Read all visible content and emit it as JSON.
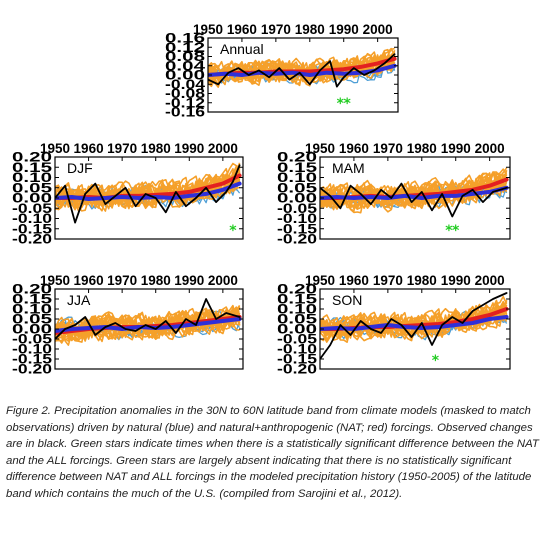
{
  "caption": "Figure 2. Precipitation anomalies in the 30N to 60N latitude band from climate models (masked to match observations) driven by natural (blue) and natural+anthropogenic (NAT; red) forcings. Observed changes are in black. Green stars indicate times when there is a statistically significant difference between the NAT and the ALL forcings. Green stars are largely absent indicating that there is no statistically significant difference between NAT and ALL forcings in the modeled precipitation history (1950-2005) of the latitude band which contains the much of the U.S. (compiled from Sarojini et al., 2012).",
  "colors": {
    "models": "#f5a02a",
    "natural": "#4f9fd6",
    "all_forcings": "#e83b1d",
    "all_mean": "#e32020",
    "nat_mean": "#2f2fd8",
    "observed": "#000000",
    "stars": "#22cc22"
  },
  "chart_data": [
    {
      "type": "line",
      "label": "Annual",
      "x_ticks": [
        "1950",
        "1960",
        "1970",
        "1980",
        "1990",
        "2000"
      ],
      "y_ticks": [
        "0.16",
        "0.12",
        "0.08",
        "0.04",
        "0.00",
        "-0.04",
        "-0.08",
        "-0.12",
        "-0.16"
      ],
      "xlim": [
        1950,
        2006
      ],
      "ylim": [
        -0.16,
        0.16
      ],
      "stars_x": [
        1989,
        1991
      ],
      "series": [
        {
          "role": "all_mean",
          "x": [
            1950,
            1955,
            1960,
            1965,
            1970,
            1975,
            1980,
            1985,
            1990,
            1995,
            2000,
            2005
          ],
          "values": [
            0.0,
            0.005,
            0.01,
            0.01,
            0.015,
            0.015,
            0.015,
            0.02,
            0.025,
            0.035,
            0.05,
            0.07
          ]
        },
        {
          "role": "nat_mean",
          "x": [
            1950,
            1955,
            1960,
            1965,
            1970,
            1975,
            1980,
            1985,
            1990,
            1995,
            2000,
            2005
          ],
          "values": [
            0.0,
            0.005,
            0.0,
            0.01,
            0.005,
            0.01,
            0.0,
            0.01,
            0.005,
            0.01,
            0.02,
            0.04
          ]
        },
        {
          "role": "observed",
          "x": [
            1950,
            1953,
            1956,
            1959,
            1962,
            1965,
            1968,
            1971,
            1974,
            1977,
            1980,
            1983,
            1986,
            1988,
            1990,
            1993,
            1996,
            1999,
            2002,
            2005
          ],
          "values": [
            -0.02,
            -0.04,
            0.01,
            0.03,
            0.0,
            0.02,
            -0.01,
            0.03,
            -0.02,
            0.01,
            -0.04,
            0.02,
            0.06,
            -0.05,
            -0.01,
            0.03,
            0.0,
            0.02,
            0.05,
            0.09
          ]
        }
      ]
    },
    {
      "type": "line",
      "label": "DJF",
      "x_ticks": [
        "1950",
        "1960",
        "1970",
        "1980",
        "1990",
        "2000"
      ],
      "y_ticks": [
        "0.20",
        "0.15",
        "0.10",
        "0.05",
        "0.00",
        "-0.05",
        "-0.10",
        "-0.15",
        "-0.20"
      ],
      "xlim": [
        1950,
        2006
      ],
      "ylim": [
        -0.2,
        0.2
      ],
      "stars_x": [
        2003
      ],
      "series": [
        {
          "role": "all_mean",
          "x": [
            1950,
            1955,
            1960,
            1965,
            1970,
            1975,
            1980,
            1985,
            1990,
            1995,
            2000,
            2005
          ],
          "values": [
            0.0,
            0.0,
            0.005,
            0.0,
            0.01,
            0.01,
            0.015,
            0.02,
            0.03,
            0.05,
            0.07,
            0.11
          ]
        },
        {
          "role": "nat_mean",
          "x": [
            1950,
            1955,
            1960,
            1965,
            1970,
            1975,
            1980,
            1985,
            1990,
            1995,
            2000,
            2005
          ],
          "values": [
            0.0,
            0.005,
            -0.005,
            0.0,
            0.005,
            0.0,
            0.005,
            0.0,
            0.01,
            0.02,
            0.04,
            0.07
          ]
        },
        {
          "role": "observed",
          "x": [
            1950,
            1953,
            1956,
            1959,
            1962,
            1965,
            1968,
            1971,
            1974,
            1977,
            1980,
            1983,
            1986,
            1989,
            1992,
            1995,
            1998,
            2001,
            2003,
            2005
          ],
          "values": [
            0.0,
            0.06,
            -0.12,
            0.02,
            0.07,
            -0.03,
            0.01,
            0.05,
            -0.04,
            0.02,
            0.0,
            -0.07,
            0.03,
            -0.04,
            0.0,
            0.05,
            -0.02,
            0.03,
            0.08,
            0.16
          ]
        }
      ]
    },
    {
      "type": "line",
      "label": "MAM",
      "x_ticks": [
        "1950",
        "1960",
        "1970",
        "1980",
        "1990",
        "2000"
      ],
      "y_ticks": [
        "0.20",
        "0.15",
        "0.10",
        "0.05",
        "0.00",
        "-0.05",
        "-0.10",
        "-0.15",
        "-0.20"
      ],
      "xlim": [
        1950,
        2006
      ],
      "ylim": [
        -0.2,
        0.2
      ],
      "stars_x": [
        1988,
        1990
      ],
      "series": [
        {
          "role": "all_mean",
          "x": [
            1950,
            1955,
            1960,
            1965,
            1970,
            1975,
            1980,
            1985,
            1990,
            1995,
            2000,
            2005
          ],
          "values": [
            0.0,
            0.0,
            0.005,
            0.01,
            0.005,
            0.01,
            0.015,
            0.02,
            0.03,
            0.04,
            0.06,
            0.09
          ]
        },
        {
          "role": "nat_mean",
          "x": [
            1950,
            1955,
            1960,
            1965,
            1970,
            1975,
            1980,
            1985,
            1990,
            1995,
            2000,
            2005
          ],
          "values": [
            0.0,
            0.005,
            0.0,
            0.005,
            0.0,
            0.01,
            0.0,
            0.01,
            0.01,
            0.02,
            0.03,
            0.05
          ]
        },
        {
          "role": "observed",
          "x": [
            1950,
            1953,
            1956,
            1959,
            1962,
            1965,
            1968,
            1971,
            1974,
            1977,
            1980,
            1983,
            1986,
            1989,
            1992,
            1995,
            1998,
            2001,
            2005
          ],
          "values": [
            0.05,
            0.01,
            -0.05,
            0.06,
            0.02,
            -0.03,
            0.04,
            0.0,
            0.07,
            -0.02,
            0.03,
            -0.06,
            0.02,
            -0.09,
            0.01,
            0.04,
            -0.02,
            0.03,
            0.05
          ]
        }
      ]
    },
    {
      "type": "line",
      "label": "JJA",
      "x_ticks": [
        "1950",
        "1960",
        "1970",
        "1980",
        "1990",
        "2000"
      ],
      "y_ticks": [
        "0.20",
        "0.15",
        "0.10",
        "0.05",
        "0.00",
        "-0.05",
        "-0.10",
        "-0.15",
        "-0.20"
      ],
      "xlim": [
        1950,
        2006
      ],
      "ylim": [
        -0.2,
        0.2
      ],
      "stars_x": [],
      "series": [
        {
          "role": "all_mean",
          "x": [
            1950,
            1955,
            1960,
            1965,
            1970,
            1975,
            1980,
            1985,
            1990,
            1995,
            2000,
            2005
          ],
          "values": [
            -0.02,
            -0.01,
            0.0,
            0.005,
            0.01,
            0.01,
            0.015,
            0.02,
            0.03,
            0.04,
            0.05,
            0.06
          ]
        },
        {
          "role": "nat_mean",
          "x": [
            1950,
            1955,
            1960,
            1965,
            1970,
            1975,
            1980,
            1985,
            1990,
            1995,
            2000,
            2005
          ],
          "values": [
            -0.01,
            0.0,
            0.005,
            0.01,
            0.0,
            0.01,
            0.005,
            0.01,
            0.02,
            0.03,
            0.04,
            0.05
          ]
        },
        {
          "role": "observed",
          "x": [
            1950,
            1953,
            1956,
            1959,
            1962,
            1965,
            1968,
            1971,
            1974,
            1977,
            1980,
            1983,
            1986,
            1989,
            1992,
            1995,
            1998,
            2001,
            2005
          ],
          "values": [
            -0.05,
            0.0,
            0.02,
            0.06,
            -0.03,
            0.01,
            0.03,
            0.0,
            -0.01,
            0.02,
            0.0,
            0.04,
            -0.02,
            0.05,
            0.02,
            0.15,
            0.05,
            0.08,
            0.06
          ]
        }
      ]
    },
    {
      "type": "line",
      "label": "SON",
      "x_ticks": [
        "1950",
        "1960",
        "1970",
        "1980",
        "1990",
        "2000"
      ],
      "y_ticks": [
        "0.20",
        "0.15",
        "0.10",
        "0.05",
        "0.00",
        "-0.05",
        "-0.10",
        "-0.15",
        "-0.20"
      ],
      "xlim": [
        1950,
        2006
      ],
      "ylim": [
        -0.2,
        0.2
      ],
      "stars_x": [
        1984
      ],
      "series": [
        {
          "role": "all_mean",
          "x": [
            1950,
            1955,
            1960,
            1965,
            1970,
            1975,
            1980,
            1985,
            1990,
            1995,
            2000,
            2005
          ],
          "values": [
            0.0,
            0.0,
            0.005,
            0.01,
            0.01,
            0.015,
            0.02,
            0.025,
            0.035,
            0.05,
            0.07,
            0.1
          ]
        },
        {
          "role": "nat_mean",
          "x": [
            1950,
            1955,
            1960,
            1965,
            1970,
            1975,
            1980,
            1985,
            1990,
            1995,
            2000,
            2005
          ],
          "values": [
            0.0,
            0.005,
            0.0,
            0.01,
            0.02,
            0.01,
            0.005,
            0.01,
            0.02,
            0.03,
            0.05,
            0.06
          ]
        },
        {
          "role": "observed",
          "x": [
            1950,
            1953,
            1956,
            1959,
            1962,
            1965,
            1968,
            1971,
            1974,
            1977,
            1980,
            1983,
            1986,
            1989,
            1992,
            1995,
            1998,
            2001,
            2005
          ],
          "values": [
            -0.15,
            -0.08,
            0.02,
            -0.03,
            0.04,
            0.0,
            -0.02,
            0.05,
            0.02,
            -0.04,
            0.03,
            -0.08,
            0.02,
            0.06,
            0.03,
            0.09,
            0.12,
            0.15,
            0.18
          ]
        }
      ]
    }
  ]
}
